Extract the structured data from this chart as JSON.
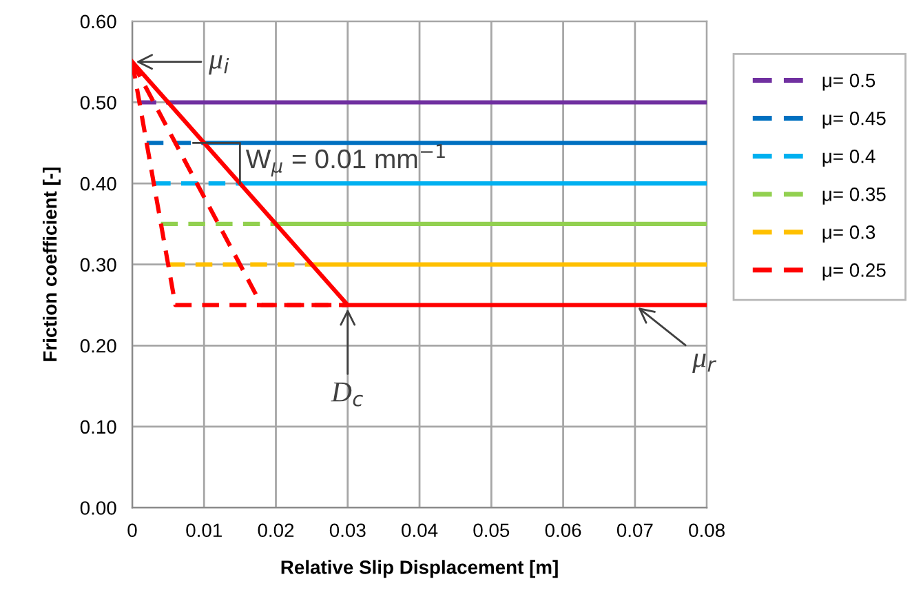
{
  "chart_data": {
    "type": "line",
    "xlabel": "Relative Slip Displacement [m]",
    "ylabel": "Friction coefficient [-]",
    "xlim": [
      0,
      0.08
    ],
    "xticks": [
      {
        "value": 0,
        "label": "0"
      },
      0.01,
      0.02,
      0.03,
      0.04,
      0.05,
      0.06,
      0.07,
      0.08
    ],
    "ylim": [
      0,
      0.6
    ],
    "yticks": [
      {
        "value": 0,
        "label": "0.00"
      },
      {
        "value": 0.1,
        "label": "0.10"
      },
      {
        "value": 0.2,
        "label": "0.20"
      },
      {
        "value": 0.3,
        "label": "0.30"
      },
      {
        "value": 0.4,
        "label": "0.40"
      },
      {
        "value": 0.5,
        "label": "0.50"
      },
      {
        "value": 0.6,
        "label": "0.60"
      }
    ],
    "grid": true,
    "legend": "right",
    "marker": "none",
    "series": [
      {
        "name": "μ= 0.5",
        "color": "#7030a0",
        "line_style": "dashed",
        "x": [
          0.001,
          0.005
        ],
        "values": [
          0.5,
          0.5
        ]
      },
      {
        "name": "μ= 0.45",
        "color": "#0070c0",
        "line_style": "dashed",
        "x": [
          0.002,
          0.01
        ],
        "values": [
          0.45,
          0.45
        ]
      },
      {
        "name": "μ= 0.4",
        "color": "#00b0f0",
        "line_style": "dashed",
        "x": [
          0.003,
          0.015
        ],
        "values": [
          0.4,
          0.4
        ]
      },
      {
        "name": "μ= 0.35",
        "color": "#92d050",
        "line_style": "dashed",
        "x": [
          0.004,
          0.02
        ],
        "values": [
          0.35,
          0.35
        ]
      },
      {
        "name": "μ= 0.3",
        "color": "#ffc000",
        "line_style": "dashed",
        "x": [
          0.005,
          0.025
        ],
        "values": [
          0.3,
          0.3
        ]
      },
      {
        "name": "μ= 0.25",
        "color": "#ff0000",
        "line_style": "dashed",
        "x": [
          0,
          0.006,
          0.03
        ],
        "values": [
          0.55,
          0.25,
          0.25
        ]
      },
      {
        "color": "#7030a0",
        "line_style": "solid",
        "x": [
          0.005,
          0.08
        ],
        "values": [
          0.5,
          0.5
        ]
      },
      {
        "color": "#0070c0",
        "line_style": "solid",
        "x": [
          0.01,
          0.08
        ],
        "values": [
          0.45,
          0.45
        ]
      },
      {
        "color": "#00b0f0",
        "line_style": "solid",
        "x": [
          0.015,
          0.08
        ],
        "values": [
          0.4,
          0.4
        ]
      },
      {
        "color": "#92d050",
        "line_style": "solid",
        "x": [
          0.02,
          0.08
        ],
        "values": [
          0.35,
          0.35
        ]
      },
      {
        "color": "#ffc000",
        "line_style": "solid",
        "x": [
          0.025,
          0.08
        ],
        "values": [
          0.3,
          0.3
        ]
      },
      {
        "color": "#ff0000",
        "line_style": "dashed",
        "x": [
          0,
          0.018,
          0.03
        ],
        "values": [
          0.55,
          0.25,
          0.25
        ]
      },
      {
        "color": "#ff0000",
        "line_style": "solid",
        "x": [
          0,
          0.03,
          0.08
        ],
        "values": [
          0.55,
          0.25,
          0.25
        ]
      }
    ],
    "annotations": [
      {
        "text": "μ$_{i}$",
        "x": 0,
        "y": 0.55
      },
      {
        "text": "D$_{c}$",
        "x": 0.03,
        "y": 0.25
      },
      {
        "text": "μ$_{r}$",
        "x": 0.07,
        "y": 0.25
      },
      {
        "text": "W$_{μ}$ = 0.01 mm$^{−1}$",
        "x": 0.015,
        "y": 0.4
      }
    ]
  }
}
